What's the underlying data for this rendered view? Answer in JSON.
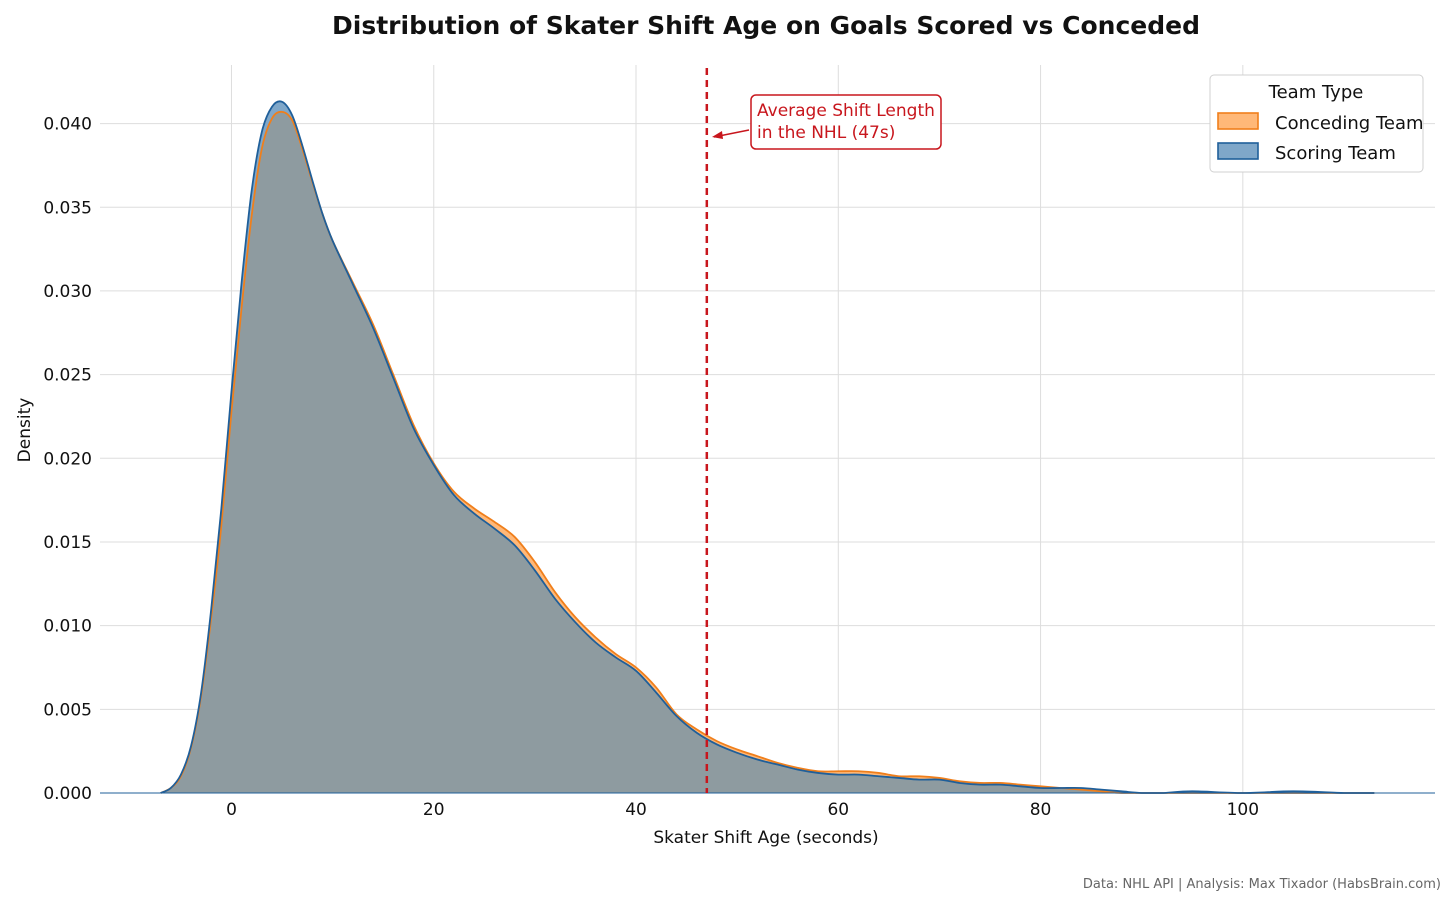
{
  "chart_data": {
    "type": "area",
    "title": "Distribution of Skater Shift Age on Goals Scored vs Conceded",
    "xlabel": "Skater Shift Age (seconds)",
    "ylabel": "Density",
    "xlim": [
      -13,
      119
    ],
    "ylim": [
      0,
      0.0435
    ],
    "xticks": [
      0,
      20,
      40,
      60,
      80,
      100
    ],
    "yticks": [
      0.0,
      0.005,
      0.01,
      0.015,
      0.02,
      0.025,
      0.03,
      0.035,
      0.04
    ],
    "ytick_labels": [
      "0.000",
      "0.005",
      "0.010",
      "0.015",
      "0.020",
      "0.025",
      "0.030",
      "0.035",
      "0.040"
    ],
    "grid": true,
    "legend_position": "top-right",
    "legend_title": "Team Type",
    "series": [
      {
        "name": "Conceding Team",
        "line_color": "#f07f1b",
        "fill_color": "#ffb878",
        "x": [
          -7,
          -6,
          -5,
          -4,
          -3,
          -2,
          -1,
          0,
          1,
          2,
          3,
          4,
          5,
          6,
          7,
          8,
          9,
          10,
          12,
          14,
          16,
          18,
          20,
          22,
          24,
          26,
          28,
          30,
          32,
          34,
          36,
          38,
          40,
          42,
          44,
          46,
          48,
          50,
          52,
          54,
          56,
          58,
          60,
          62,
          64,
          66,
          68,
          70,
          72,
          74,
          76,
          78,
          80,
          82,
          84,
          86,
          88,
          90,
          92,
          95,
          100,
          105,
          110,
          113
        ],
        "y": [
          0.0,
          0.0003,
          0.001,
          0.0027,
          0.0058,
          0.0105,
          0.016,
          0.0228,
          0.029,
          0.0345,
          0.0385,
          0.0403,
          0.0407,
          0.0402,
          0.0385,
          0.0365,
          0.0346,
          0.033,
          0.0305,
          0.028,
          0.025,
          0.022,
          0.0197,
          0.018,
          0.017,
          0.0162,
          0.0153,
          0.0138,
          0.012,
          0.0105,
          0.0093,
          0.0083,
          0.0075,
          0.0063,
          0.0047,
          0.0038,
          0.0031,
          0.0026,
          0.0022,
          0.0018,
          0.0015,
          0.0013,
          0.0013,
          0.0013,
          0.0012,
          0.001,
          0.001,
          0.0009,
          0.0007,
          0.0006,
          0.0006,
          0.0005,
          0.0004,
          0.0003,
          0.0002,
          0.0001,
          0.0,
          0.0,
          0.0,
          0.0,
          0.0,
          0.0,
          0.0,
          0.0
        ]
      },
      {
        "name": "Scoring Team",
        "line_color": "#1f5f9a",
        "fill_color": "#7fa7c9",
        "x": [
          -7,
          -6,
          -5,
          -4,
          -3,
          -2,
          -1,
          0,
          1,
          2,
          3,
          4,
          5,
          6,
          7,
          8,
          9,
          10,
          12,
          14,
          16,
          18,
          20,
          22,
          24,
          26,
          28,
          30,
          32,
          34,
          36,
          38,
          40,
          42,
          44,
          46,
          48,
          50,
          52,
          54,
          56,
          58,
          60,
          62,
          64,
          66,
          68,
          70,
          72,
          74,
          76,
          78,
          80,
          82,
          84,
          86,
          88,
          90,
          92,
          95,
          100,
          105,
          110,
          113
        ],
        "y": [
          0.0,
          0.0003,
          0.0011,
          0.0028,
          0.006,
          0.011,
          0.017,
          0.024,
          0.0305,
          0.036,
          0.0395,
          0.041,
          0.0413,
          0.0405,
          0.0387,
          0.0366,
          0.0346,
          0.033,
          0.0304,
          0.0278,
          0.0248,
          0.0218,
          0.0196,
          0.0178,
          0.0167,
          0.0158,
          0.0148,
          0.0133,
          0.0116,
          0.0102,
          0.009,
          0.0081,
          0.0073,
          0.006,
          0.0046,
          0.0036,
          0.0029,
          0.0024,
          0.002,
          0.0017,
          0.0014,
          0.0012,
          0.0011,
          0.0011,
          0.001,
          0.0009,
          0.0008,
          0.0008,
          0.0006,
          0.0005,
          0.0005,
          0.0004,
          0.0003,
          0.0003,
          0.0003,
          0.0002,
          0.0001,
          0.0,
          0.0,
          0.0001,
          0.0,
          0.0001,
          0.0,
          0.0
        ]
      }
    ],
    "reference_line": {
      "x": 47,
      "color": "#c8161d",
      "style": "dashed",
      "annotation_line1": "Average Shift Length",
      "annotation_line2": "in the NHL (47s)"
    },
    "credit": "Data: NHL API | Analysis: Max Tixador (HabsBrain.com)",
    "overlap_fill_color": "#8e9ba0"
  }
}
